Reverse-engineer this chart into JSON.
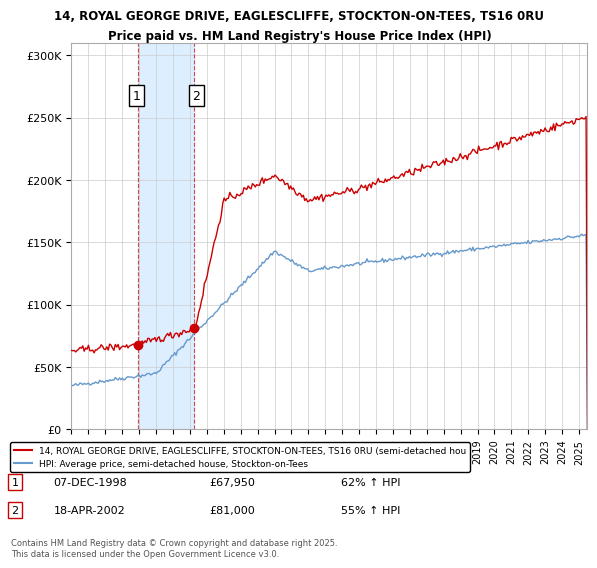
{
  "title_line1": "14, ROYAL GEORGE DRIVE, EAGLESCLIFFE, STOCKTON-ON-TEES, TS16 0RU",
  "title_line2": "Price paid vs. HM Land Registry's House Price Index (HPI)",
  "ylabel": "",
  "xlabel": "",
  "ylim": [
    0,
    310000
  ],
  "yticks": [
    0,
    50000,
    100000,
    150000,
    200000,
    250000,
    300000
  ],
  "ytick_labels": [
    "£0",
    "£50K",
    "£100K",
    "£150K",
    "£200K",
    "£250K",
    "£300K"
  ],
  "x_start_year": 1995,
  "x_end_year": 2025,
  "red_color": "#cc0000",
  "blue_color": "#6699cc",
  "shaded_color": "#ddeeff",
  "purchase1_date": "07-DEC-1998",
  "purchase1_price": 67950,
  "purchase1_hpi": "62% ↑ HPI",
  "purchase1_label": "1",
  "purchase2_date": "18-APR-2002",
  "purchase2_price": 81000,
  "purchase2_hpi": "55% ↑ HPI",
  "purchase2_label": "2",
  "legend_red": "14, ROYAL GEORGE DRIVE, EAGLESCLIFFE, STOCKTON-ON-TEES, TS16 0RU (semi-detached hou",
  "legend_blue": "HPI: Average price, semi-detached house, Stockton-on-Tees",
  "footnote": "Contains HM Land Registry data © Crown copyright and database right 2025.\nThis data is licensed under the Open Government Licence v3.0.",
  "background_color": "#ffffff",
  "grid_color": "#cccccc"
}
